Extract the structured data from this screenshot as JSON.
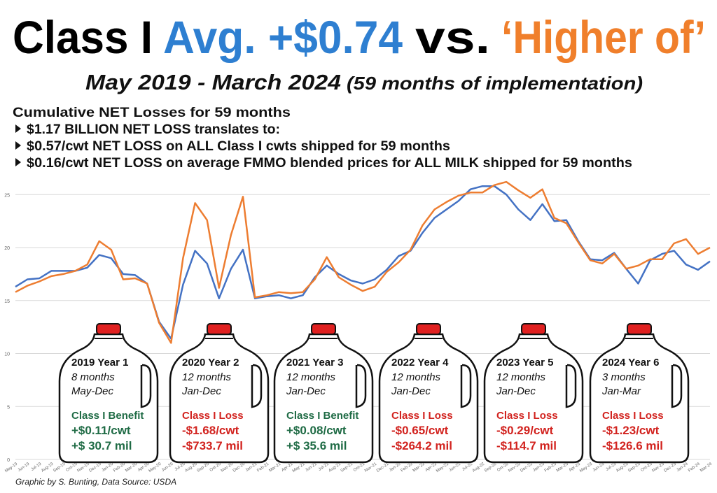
{
  "header": {
    "title": [
      {
        "text": "Class I",
        "color": "#000000"
      },
      {
        "text": "Avg. +$0.74",
        "color": "#2e7fd1"
      },
      {
        "text": "vs.",
        "color": "#000000"
      },
      {
        "text": "‘Higher of’",
        "color": "#f07f2b"
      }
    ],
    "subtitle": [
      "May 2019 - March 2024",
      "(59 months of implementation)"
    ]
  },
  "notes": {
    "heading": "Cumulative NET Losses for 59 months",
    "bullets": [
      "$1.17 BILLION NET LOSS translates to:",
      "$0.57/cwt NET LOSS on ALL Class I cwts shipped for 59 months",
      "$0.16/cwt NET LOSS on average FMMO blended prices for ALL MILK shipped for 59 months"
    ]
  },
  "chart_data": {
    "type": "line",
    "categories": [
      "May-19",
      "Jun-19",
      "Jul-19",
      "Aug-19",
      "Sep-19",
      "Oct-19",
      "Nov-19",
      "Dec-19",
      "Jan-20",
      "Feb-20",
      "Mar-20",
      "Apr-20",
      "May-20",
      "Jun-20",
      "Jul-20",
      "Aug-20",
      "Sep-20",
      "Oct-20",
      "Nov-20",
      "Dec-20",
      "Jan-21",
      "Feb-21",
      "Mar-21",
      "Apr-21",
      "May-21",
      "Jun-21",
      "Jul-21",
      "Aug-21",
      "Sep-21",
      "Oct-21",
      "Nov-21",
      "Dec-21",
      "Jan-22",
      "Feb-22",
      "Mar-22",
      "Apr-22",
      "May-22",
      "Jun-22",
      "Jul-22",
      "Aug-22",
      "Sep-22",
      "Oct-22",
      "Nov-22",
      "Dec-22",
      "Jan-23",
      "Feb-23",
      "Mar-23",
      "Apr-23",
      "May-23",
      "Jun-23",
      "Jul-23",
      "Aug-23",
      "Sep-23",
      "Oct-23",
      "Nov-23",
      "Dec-23",
      "Jan-24",
      "Feb-24",
      "Mar-24"
    ],
    "series": [
      {
        "color": "#4472c4",
        "values": [
          16.3,
          17.0,
          17.1,
          17.8,
          17.8,
          17.8,
          18.1,
          19.3,
          19.0,
          17.5,
          17.4,
          16.6,
          13.0,
          11.4,
          16.5,
          19.7,
          18.5,
          15.2,
          18.0,
          19.8,
          15.2,
          15.4,
          15.5,
          15.2,
          15.5,
          17.2,
          18.3,
          17.5,
          16.9,
          16.6,
          17.0,
          17.9,
          19.2,
          19.7,
          21.4,
          22.8,
          23.6,
          24.4,
          25.5,
          25.8,
          25.8,
          25.0,
          23.6,
          22.6,
          24.1,
          22.5,
          22.6,
          20.6,
          18.9,
          18.8,
          19.5,
          18.0,
          16.6,
          18.8,
          19.4,
          19.7,
          18.4,
          17.9,
          18.7
        ]
      },
      {
        "color": "#ed7d31",
        "values": [
          15.8,
          16.4,
          16.8,
          17.3,
          17.5,
          17.8,
          18.4,
          20.6,
          19.8,
          17.0,
          17.1,
          16.6,
          12.9,
          11.0,
          19.0,
          24.2,
          22.6,
          16.2,
          21.2,
          24.8,
          15.3,
          15.5,
          15.8,
          15.7,
          15.8,
          17.0,
          19.1,
          17.2,
          16.5,
          15.9,
          16.3,
          17.7,
          18.6,
          19.8,
          22.1,
          23.6,
          24.3,
          24.9,
          25.2,
          25.2,
          25.9,
          26.2,
          25.4,
          24.7,
          25.5,
          22.8,
          22.3,
          20.5,
          18.8,
          18.5,
          19.4,
          18.0,
          18.3,
          18.9,
          18.9,
          20.4,
          20.8,
          19.4,
          20.0
        ]
      }
    ],
    "ylim": [
      0,
      27
    ],
    "yticks": [
      0,
      5,
      10,
      15,
      20,
      25
    ],
    "grid": true
  },
  "jugs": [
    {
      "title": "2019 Year 1",
      "months": "8 months",
      "period": "May-Dec",
      "result": "Class I Benefit",
      "per_cwt": "+$0.11/cwt",
      "total": "+$ 30.7 mil",
      "color": "#1f6b45"
    },
    {
      "title": "2020 Year 2",
      "months": "12 months",
      "period": "Jan-Dec",
      "result": "Class I Loss",
      "per_cwt": "-$1.68/cwt",
      "total": "-$733.7 mil",
      "color": "#d2231f"
    },
    {
      "title": "2021 Year 3",
      "months": "12 months",
      "period": "Jan-Dec",
      "result": "Class I Benefit",
      "per_cwt": "+$0.08/cwt",
      "total": "+$ 35.6 mil",
      "color": "#1f6b45"
    },
    {
      "title": "2022 Year 4",
      "months": "12 months",
      "period": "Jan-Dec",
      "result": "Class I Loss",
      "per_cwt": "-$0.65/cwt",
      "total": "-$264.2 mil",
      "color": "#d2231f"
    },
    {
      "title": "2023 Year 5",
      "months": "12 months",
      "period": "Jan-Dec",
      "result": "Class I Loss",
      "per_cwt": "-$0.29/cwt",
      "total": "-$114.7 mil",
      "color": "#d2231f"
    },
    {
      "title": "2024 Year 6",
      "months": "3 months",
      "period": "Jan-Mar",
      "result": "Class I Loss",
      "per_cwt": "-$1.23/cwt",
      "total": "-$126.6 mil",
      "color": "#d2231f"
    }
  ],
  "footer": "Graphic by S. Bunting, Data Source: USDA"
}
